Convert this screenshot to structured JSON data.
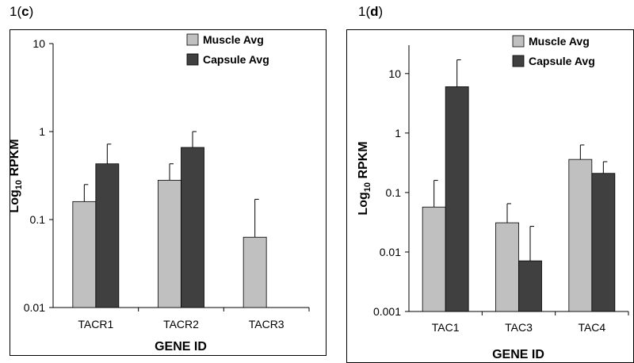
{
  "chart_data": [
    {
      "type": "bar",
      "panel_prefix": "1(",
      "panel_letter": "c",
      "panel_suffix": ")",
      "scale": "log",
      "ylabel_main": "Log",
      "ylabel_sub": "10",
      "ylabel_rest": " RPKM",
      "xlabel": "GENE ID",
      "ylim": [
        0.01,
        10
      ],
      "yticks": [
        0.01,
        0.1,
        1,
        10
      ],
      "ytick_labels": [
        "0.01",
        "0.1",
        "1",
        "10"
      ],
      "categories": [
        "TACR1",
        "TACR2",
        "TACR3"
      ],
      "legend_position": "top-right",
      "series": [
        {
          "name": "Muscle Avg",
          "color": "#c0c0c0",
          "values": [
            0.16,
            0.28,
            0.063
          ],
          "errors_upper": [
            0.25,
            0.43,
            0.17
          ]
        },
        {
          "name": "Capsule Avg",
          "color": "#404040",
          "values": [
            0.43,
            0.66,
            null
          ],
          "errors_upper": [
            0.72,
            1.0,
            null
          ]
        }
      ]
    },
    {
      "type": "bar",
      "panel_prefix": "1(",
      "panel_letter": "d",
      "panel_suffix": ")",
      "scale": "log",
      "ylabel_main": "Log",
      "ylabel_sub": "10",
      "ylabel_rest": " RPKM",
      "xlabel": "GENE ID",
      "ylim": [
        0.001,
        30
      ],
      "yticks": [
        0.001,
        0.01,
        0.1,
        1,
        10
      ],
      "ytick_labels": [
        "0.001",
        "0.01",
        "0.1",
        "1",
        "10"
      ],
      "categories": [
        "TAC1",
        "TAC3",
        "TAC4"
      ],
      "legend_position": "top-right",
      "series": [
        {
          "name": "Muscle Avg",
          "color": "#c0c0c0",
          "values": [
            0.057,
            0.031,
            0.36
          ],
          "errors_upper": [
            0.16,
            0.065,
            0.63
          ]
        },
        {
          "name": "Capsule Avg",
          "color": "#404040",
          "values": [
            6.0,
            0.0071,
            0.21
          ],
          "errors_upper": [
            17,
            0.027,
            0.33
          ]
        }
      ]
    }
  ]
}
